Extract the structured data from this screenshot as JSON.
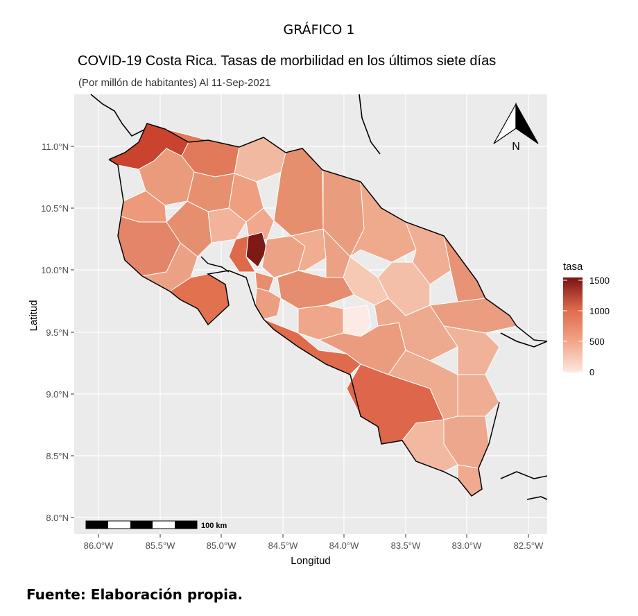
{
  "figure_label": "GRÁFICO 1",
  "source_note": "Fuente: Elaboración propia.",
  "chart_data": {
    "type": "choropleth-map",
    "title": "COVID-19 Costa Rica. Tasas de morbilidad en los últimos siete días",
    "subtitle": "(Por millón de habitantes) Al 11-Sep-2021",
    "xlabel": "Longitud",
    "ylabel": "Latitud",
    "x_ticks": [
      "86.0°W",
      "85.5°W",
      "85.0°W",
      "84.5°W",
      "84.0°W",
      "83.5°W",
      "83.0°W",
      "82.5°W"
    ],
    "y_ticks": [
      "11.0°N",
      "10.5°N",
      "10.0°N",
      "9.5°N",
      "9.0°N",
      "8.5°N",
      "8.0°N"
    ],
    "xlim": [
      -86.12,
      -82.27
    ],
    "ylim": [
      7.9,
      11.36
    ],
    "grid": true,
    "legend": {
      "title": "tasa",
      "position": "right",
      "range": [
        0,
        1500
      ],
      "ticks": [
        "1500",
        "1000",
        "500",
        "0"
      ],
      "colors": [
        "#fde9e1",
        "#f2a487",
        "#e06a4d",
        "#7a1213"
      ]
    },
    "scale_bar_label": "100 km",
    "north_arrow_label": "N",
    "colors": {
      "panel": "#ebebeb",
      "grid": "#ffffff",
      "border": "#ffffff",
      "coast": "#000000"
    }
  }
}
